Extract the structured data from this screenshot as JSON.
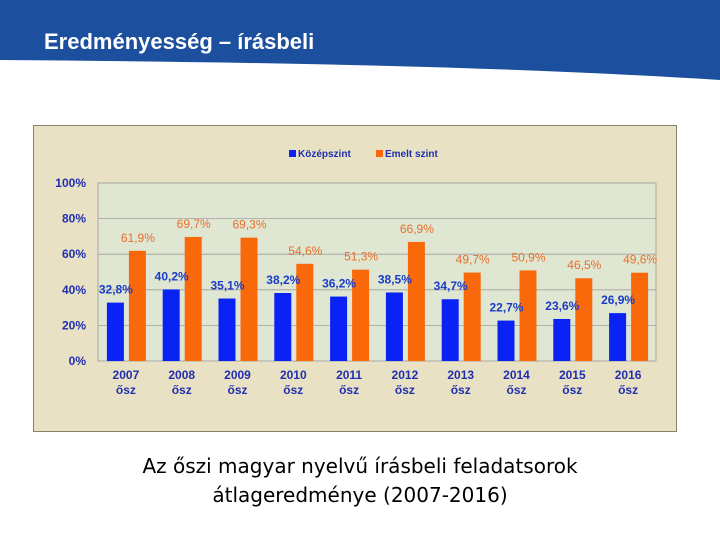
{
  "slide": {
    "title": "Eredményesség – írásbeli",
    "caption_line1": "Az őszi magyar nyelvű írásbeli feladatsorok",
    "caption_line2": "átlageredménye (2007-2016)"
  },
  "colors": {
    "banner": "#1c4f9e",
    "series_kozepszint": "#0b22f5",
    "series_emelt": "#f9690a",
    "plot_bg": "#dfe6d2",
    "axis_text": "#1f2fb0",
    "label_blue": "#1a3cc8",
    "label_orange": "#e8702a"
  },
  "chart_data": {
    "type": "bar",
    "categories": [
      "2007 ősz",
      "2008 ősz",
      "2009 ősz",
      "2010 ősz",
      "2011 ősz",
      "2012 ősz",
      "2013 ősz",
      "2014 ősz",
      "2015 ősz",
      "2016 ősz"
    ],
    "category_lines": [
      [
        "2007",
        "ősz"
      ],
      [
        "2008",
        "ősz"
      ],
      [
        "2009",
        "ősz"
      ],
      [
        "2010",
        "ősz"
      ],
      [
        "2011",
        "ősz"
      ],
      [
        "2012",
        "ősz"
      ],
      [
        "2013",
        "ősz"
      ],
      [
        "2014",
        "ősz"
      ],
      [
        "2015",
        "ősz"
      ],
      [
        "2016",
        "ősz"
      ]
    ],
    "series": [
      {
        "name": "Középszint",
        "values": [
          32.8,
          40.2,
          35.1,
          38.2,
          36.2,
          38.5,
          34.7,
          22.7,
          23.6,
          26.9
        ],
        "labels": [
          "32,8%",
          "40,2%",
          "35,1%",
          "38,2%",
          "36,2%",
          "38,5%",
          "34,7%",
          "22,7%",
          "23,6%",
          "26,9%"
        ]
      },
      {
        "name": "Emelt szint",
        "values": [
          61.9,
          69.7,
          69.3,
          54.6,
          51.3,
          66.9,
          49.7,
          50.9,
          46.5,
          49.6
        ],
        "labels": [
          "61,9%",
          "69,7%",
          "69,3%",
          "54,6%",
          "51,3%",
          "66,9%",
          "49,7%",
          "50,9%",
          "46,5%",
          "49,6%"
        ]
      }
    ],
    "y_ticks": [
      "0%",
      "20%",
      "40%",
      "60%",
      "80%",
      "100%"
    ],
    "ylim": [
      0,
      100
    ],
    "gridlines": true,
    "legend_position": "top-center",
    "title": "",
    "xlabel": "",
    "ylabel": ""
  }
}
